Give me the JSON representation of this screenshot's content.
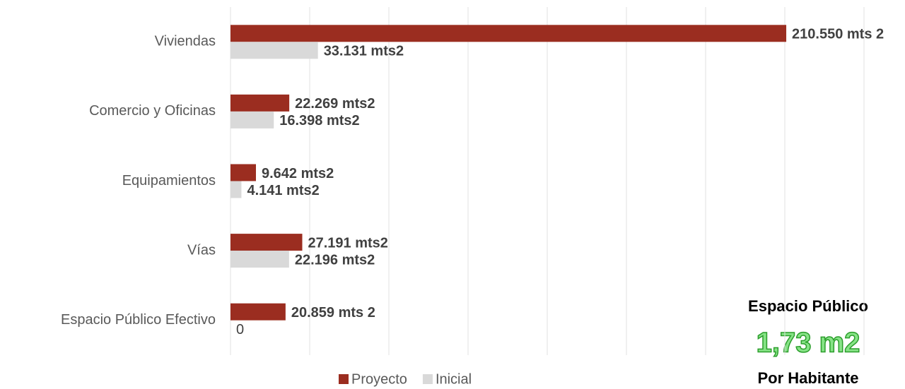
{
  "chart_data": {
    "type": "barh",
    "categories": [
      "Viviendas",
      "Comercio y Oficinas",
      "Equipamientos",
      "Vías",
      "Espacio Público Efectivo"
    ],
    "series": [
      {
        "name": "Proyecto",
        "color": "#9b2d20",
        "values": [
          210550,
          22269,
          9642,
          27191,
          20859
        ],
        "value_labels": [
          "210.550 mts 2",
          "22.269 mts2",
          "9.642 mts2",
          "27.191 mts2",
          "20.859 mts 2"
        ]
      },
      {
        "name": "Inicial",
        "color": "#d9d9d9",
        "values": [
          33131,
          16398,
          4141,
          22196,
          0
        ],
        "value_labels": [
          "33.131 mts2",
          "16.398 mts2",
          "4.141 mts2",
          "22.196 mts2",
          "0"
        ]
      }
    ],
    "xlim": [
      0,
      240000
    ],
    "xticks": [
      0,
      30000,
      60000,
      90000,
      120000,
      150000,
      180000,
      210000,
      240000
    ],
    "grid": true,
    "legend": "bottom",
    "annotations": [
      "Espacio Público",
      "1,73 m2",
      "Por Habitante"
    ]
  }
}
